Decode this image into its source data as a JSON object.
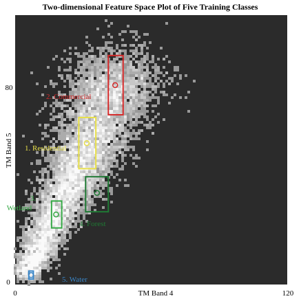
{
  "chart_data": {
    "type": "scatter",
    "title": "Two-dimensional Feature Space Plot of Five Training Classes",
    "xlabel": "TM Band 4",
    "ylabel": "TM Band 5",
    "xlim": [
      0,
      120
    ],
    "ylim": [
      0,
      100
    ],
    "x_ticks": [
      {
        "value": 0,
        "label": "0"
      },
      {
        "value": 120,
        "label": "120"
      }
    ],
    "y_ticks": [
      {
        "value": 0,
        "label": "0"
      },
      {
        "value": 80,
        "label": "80"
      }
    ],
    "background_color": "#2b2b2b",
    "density_cloud": {
      "description_color": "#f2f2f2",
      "core_path_x": [
        5,
        15,
        25,
        33,
        40,
        46
      ],
      "core_path_y": [
        3,
        22,
        38,
        52,
        68,
        80
      ]
    },
    "classes": [
      {
        "name": "2. Commercial",
        "color": "#d42a2a",
        "x_range": [
          41,
          47.5
        ],
        "y_range": [
          63,
          85
        ],
        "mean": [
          44,
          74
        ]
      },
      {
        "name": "1. Residential",
        "color": "#e8e04a",
        "x_range": [
          28,
          35.5
        ],
        "y_range": [
          43,
          62
        ],
        "mean": [
          31.5,
          52.5
        ]
      },
      {
        "name": "3.\nWetland",
        "color": "#35a845",
        "x_range": [
          16,
          20.5
        ],
        "y_range": [
          21,
          31
        ],
        "mean": [
          18,
          26
        ]
      },
      {
        "name": "4. Forest",
        "color": "#1f7a34",
        "x_range": [
          31,
          41
        ],
        "y_range": [
          27,
          40
        ],
        "mean": [
          36,
          34
        ]
      },
      {
        "name": "5. Water",
        "color": "#3a86c8",
        "x_range": [
          6,
          8
        ],
        "y_range": [
          2,
          5
        ],
        "mean": [
          7,
          3.5
        ]
      }
    ]
  }
}
